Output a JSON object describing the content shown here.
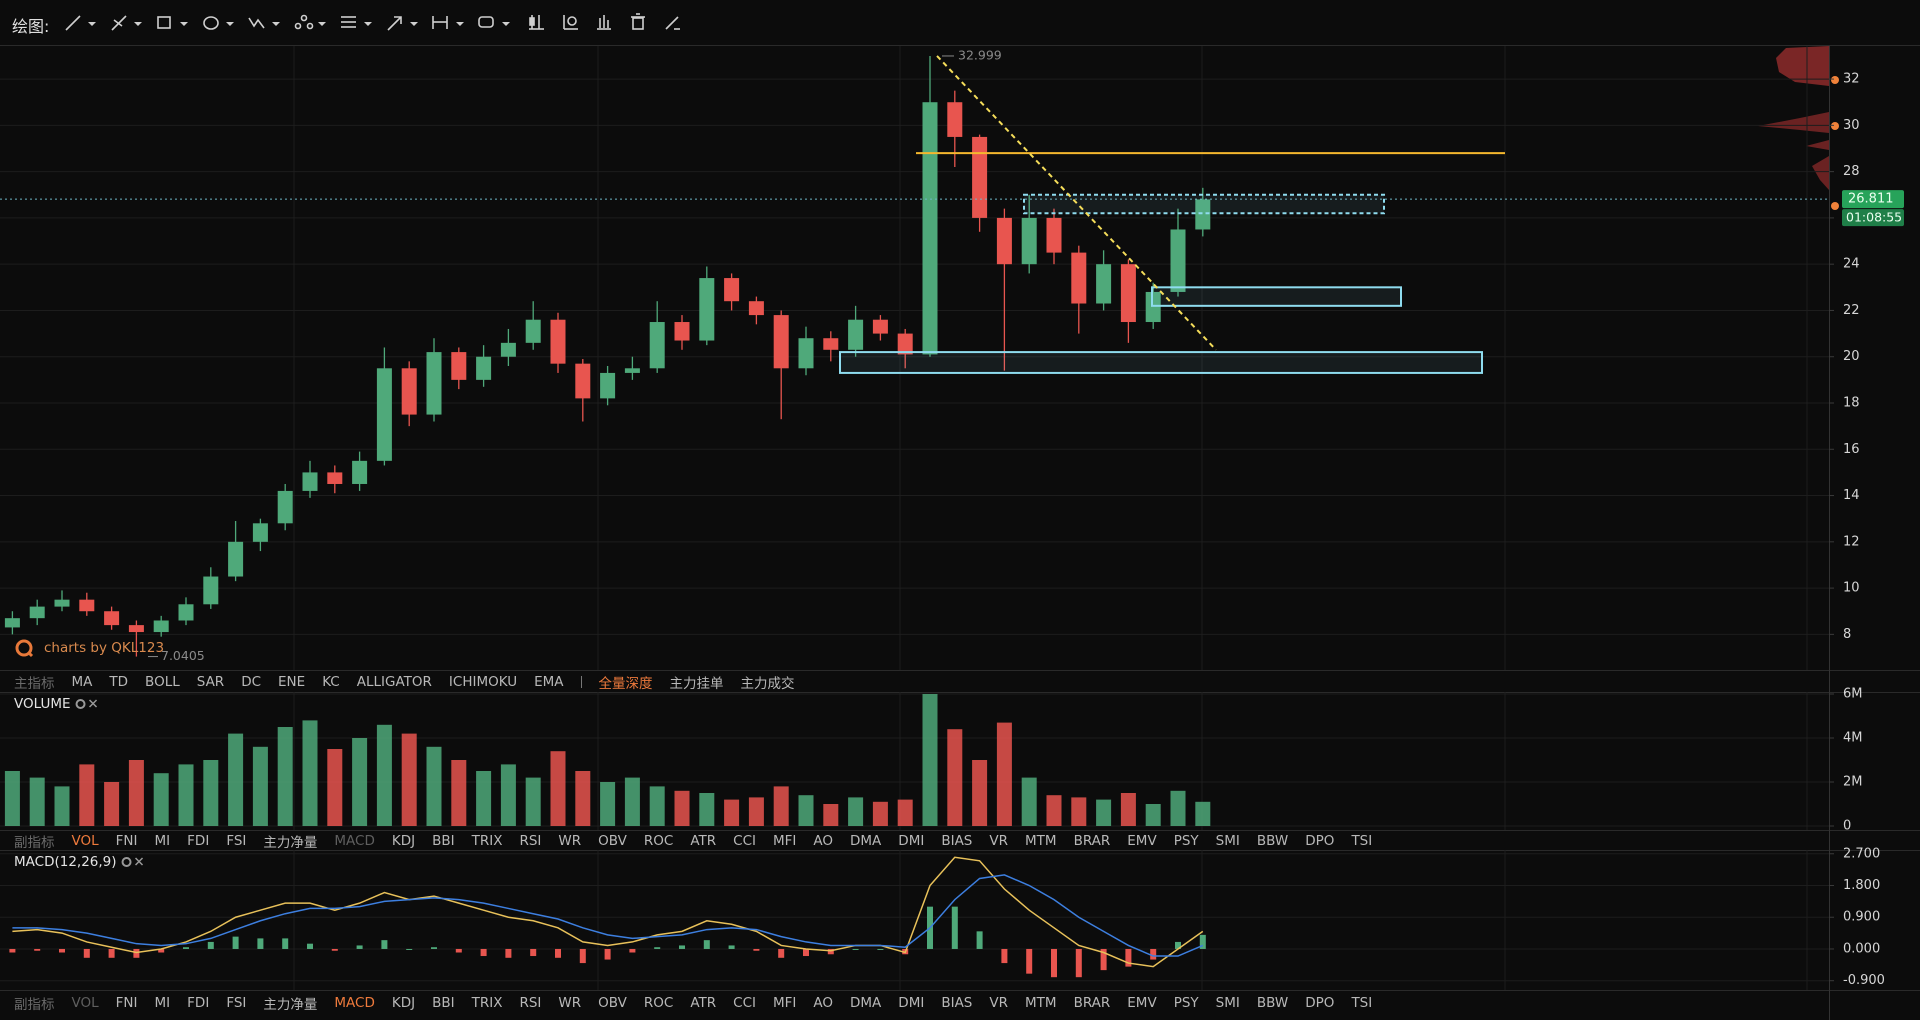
{
  "toolbar": {
    "label": "绘图:"
  },
  "main_indicators": {
    "label": "主指标",
    "items": [
      "MA",
      "TD",
      "BOLL",
      "SAR",
      "DC",
      "ENE",
      "KC",
      "ALLIGATOR",
      "ICHIMOKU",
      "EMA"
    ],
    "depth_items": [
      "全量深度",
      "主力挂单",
      "主力成交"
    ],
    "active": "全量深度"
  },
  "sub_indicators": [
    {
      "label": "副指标",
      "items": [
        "VOL",
        "FNI",
        "MI",
        "FDI",
        "FSI",
        "主力净量",
        "MACD",
        "KDJ",
        "BBI",
        "TRIX",
        "RSI",
        "WR",
        "OBV",
        "ROC",
        "ATR",
        "CCI",
        "MFI",
        "AO",
        "DMA",
        "DMI",
        "BIAS",
        "VR",
        "MTM",
        "BRAR",
        "EMV",
        "PSY",
        "SMI",
        "BBW",
        "DPO",
        "TSI"
      ],
      "active": "VOL",
      "dimmed": "MACD"
    },
    {
      "label": "副指标",
      "items": [
        "VOL",
        "FNI",
        "MI",
        "FDI",
        "FSI",
        "主力净量",
        "MACD",
        "KDJ",
        "BBI",
        "TRIX",
        "RSI",
        "WR",
        "OBV",
        "ROC",
        "ATR",
        "CCI",
        "MFI",
        "AO",
        "DMA",
        "DMI",
        "BIAS",
        "VR",
        "MTM",
        "BRAR",
        "EMV",
        "PSY",
        "SMI",
        "BBW",
        "DPO",
        "TSI"
      ],
      "active": "MACD",
      "dimmed": "VOL"
    }
  ],
  "chart_data": [
    {
      "type": "candlestick",
      "watermark": "charts by QKL123",
      "open": [
        8.3,
        8.7,
        9.2,
        9.5,
        9.0,
        8.4,
        8.1,
        8.6,
        9.3,
        10.5,
        12.0,
        12.8,
        14.2,
        15.0,
        14.5,
        15.5,
        19.5,
        17.5,
        20.2,
        19.0,
        20.0,
        20.6,
        21.6,
        19.7,
        18.2,
        19.3,
        19.5,
        21.5,
        20.7,
        23.4,
        22.4,
        21.8,
        19.5,
        20.8,
        20.3,
        21.6,
        21.0,
        20.1,
        31.0,
        29.5,
        26.0,
        24.0,
        26.0,
        24.5,
        22.3,
        24.0,
        21.5,
        22.8,
        25.5
      ],
      "high": [
        9.0,
        9.5,
        9.9,
        9.8,
        9.2,
        8.6,
        8.8,
        9.6,
        10.9,
        12.9,
        13.0,
        14.5,
        15.5,
        15.3,
        15.9,
        20.4,
        19.8,
        20.8,
        20.4,
        20.5,
        21.2,
        22.4,
        21.9,
        19.9,
        19.6,
        20.0,
        22.4,
        21.8,
        23.9,
        23.6,
        22.6,
        22.0,
        21.3,
        21.1,
        22.2,
        21.8,
        21.2,
        32.999,
        31.5,
        29.6,
        26.4,
        27.0,
        26.4,
        24.8,
        24.6,
        24.2,
        23.2,
        26.4,
        27.3
      ],
      "low": [
        8.0,
        8.4,
        9.0,
        8.8,
        8.2,
        7.0405,
        7.9,
        8.4,
        9.1,
        10.3,
        11.6,
        12.5,
        13.9,
        14.1,
        14.2,
        15.3,
        17.0,
        17.2,
        18.6,
        18.7,
        19.6,
        20.3,
        19.3,
        17.2,
        17.9,
        19.0,
        19.3,
        20.3,
        20.5,
        22.0,
        21.4,
        17.3,
        19.2,
        19.8,
        20.0,
        20.7,
        19.5,
        20.0,
        28.2,
        25.4,
        19.4,
        23.6,
        24.0,
        21.0,
        22.0,
        20.6,
        21.2,
        22.6,
        25.2
      ],
      "close": [
        8.7,
        9.2,
        9.5,
        9.0,
        8.4,
        8.1,
        8.6,
        9.3,
        10.5,
        12.0,
        12.8,
        14.2,
        15.0,
        14.5,
        15.5,
        19.5,
        17.5,
        20.2,
        19.0,
        20.0,
        20.6,
        21.6,
        19.7,
        18.2,
        19.3,
        19.5,
        21.5,
        20.7,
        23.4,
        22.4,
        21.8,
        19.5,
        20.8,
        20.3,
        21.6,
        21.0,
        20.1,
        31.0,
        29.5,
        26.0,
        24.0,
        26.0,
        24.5,
        22.3,
        24.0,
        21.5,
        22.8,
        25.5,
        26.8
      ],
      "up_color": "#4fa97a",
      "down_color": "#e8554f",
      "ylim": [
        6.46,
        33.43
      ],
      "yticks": [
        8,
        10,
        12,
        14,
        16,
        18,
        20,
        22,
        24,
        26,
        28,
        30,
        32
      ],
      "grid": true,
      "annotations": {
        "high": 32.999,
        "low": 7.0405,
        "last": 26.811,
        "countdown": "01:08:55"
      },
      "drawings": {
        "hline": {
          "value": 28.8,
          "color": "#f5b82e"
        },
        "zones": [
          {
            "low": 19.3,
            "high": 20.2,
            "dashed": false
          },
          {
            "low": 22.2,
            "high": 23.0,
            "dashed": false
          },
          {
            "low": 26.2,
            "high": 27.0,
            "dashed": true
          }
        ],
        "zone_color": "#8fdcef",
        "trendline": {
          "from": 32.999,
          "to": 20.3,
          "color": "#f5dd5a"
        }
      }
    },
    {
      "type": "bar",
      "title": "VOLUME",
      "values": [
        2500000,
        2200000,
        1800000,
        2800000,
        2000000,
        3000000,
        2400000,
        2800000,
        3000000,
        4200000,
        3600000,
        4500000,
        4800000,
        3500000,
        4000000,
        4600000,
        4200000,
        3600000,
        3000000,
        2500000,
        2800000,
        2200000,
        3400000,
        2500000,
        2000000,
        2200000,
        1800000,
        1600000,
        1500000,
        1200000,
        1300000,
        1800000,
        1400000,
        1000000,
        1300000,
        1100000,
        1200000,
        6000000,
        4400000,
        3000000,
        4700000,
        2200000,
        1400000,
        1300000,
        1200000,
        1500000,
        1000000,
        1600000,
        1100000
      ],
      "ylim": [
        0,
        6000000
      ],
      "yticks": [
        0,
        {
          "value": 2000000,
          "label": "2M"
        },
        {
          "value": 4000000,
          "label": "4M"
        },
        {
          "value": 6000000,
          "label": "6M"
        }
      ],
      "grid": true
    },
    {
      "type": "macd",
      "title": "MACD(12,26,9)",
      "series": [
        {
          "color": "#e8c15a",
          "values": [
            0.5,
            0.55,
            0.45,
            0.2,
            0.05,
            -0.1,
            0.0,
            0.2,
            0.5,
            0.9,
            1.1,
            1.3,
            1.3,
            1.1,
            1.3,
            1.6,
            1.4,
            1.5,
            1.3,
            1.1,
            0.9,
            0.8,
            0.6,
            0.2,
            0.1,
            0.2,
            0.4,
            0.5,
            0.8,
            0.7,
            0.5,
            0.1,
            0.0,
            -0.05,
            0.1,
            0.1,
            -0.1,
            1.8,
            2.6,
            2.5,
            1.7,
            1.1,
            0.6,
            0.1,
            -0.1,
            -0.4,
            -0.5,
            0.0,
            0.5
          ]
        },
        {
          "color": "#3d7fe0",
          "values": [
            0.6,
            0.6,
            0.55,
            0.45,
            0.3,
            0.15,
            0.1,
            0.15,
            0.3,
            0.55,
            0.8,
            1.0,
            1.15,
            1.15,
            1.2,
            1.35,
            1.4,
            1.45,
            1.4,
            1.3,
            1.15,
            1.0,
            0.85,
            0.6,
            0.4,
            0.3,
            0.35,
            0.4,
            0.55,
            0.6,
            0.55,
            0.35,
            0.2,
            0.1,
            0.1,
            0.1,
            0.05,
            0.6,
            1.4,
            2.0,
            2.1,
            1.8,
            1.4,
            0.9,
            0.5,
            0.1,
            -0.2,
            -0.2,
            0.1
          ]
        }
      ],
      "histogram": [
        -0.1,
        -0.05,
        -0.1,
        -0.25,
        -0.25,
        -0.25,
        -0.1,
        0.05,
        0.2,
        0.35,
        0.3,
        0.3,
        0.15,
        -0.05,
        0.1,
        0.25,
        0,
        0.05,
        -0.1,
        -0.2,
        -0.25,
        -0.2,
        -0.25,
        -0.4,
        -0.3,
        -0.1,
        0.05,
        0.1,
        0.25,
        0.1,
        -0.05,
        -0.25,
        -0.2,
        -0.15,
        0,
        0,
        -0.15,
        1.2,
        1.2,
        0.5,
        -0.4,
        -0.7,
        -0.8,
        -0.8,
        -0.6,
        -0.5,
        -0.3,
        0.2,
        0.4
      ],
      "ylim": [
        -1.05,
        2.75
      ],
      "yticks": [
        {
          "value": -0.9,
          "label": "-0.900"
        },
        {
          "value": 0,
          "label": "0.000"
        },
        {
          "value": 0.9,
          "label": "0.900"
        },
        {
          "value": 1.8,
          "label": "1.800"
        },
        {
          "value": 2.7,
          "label": "2.700"
        }
      ],
      "grid": true
    }
  ]
}
